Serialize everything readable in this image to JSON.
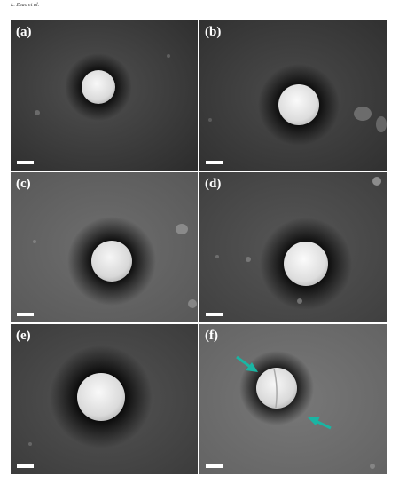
{
  "header": {
    "authors": "L. Zhao et al."
  },
  "figure": {
    "panels": [
      {
        "label": "(a)"
      },
      {
        "label": "(b)"
      },
      {
        "label": "(c)"
      },
      {
        "label": "(d)"
      },
      {
        "label": "(e)"
      },
      {
        "label": "(f)"
      }
    ],
    "scalebar_color": "#ffffff",
    "arrow_color": "#1ab5a3"
  }
}
